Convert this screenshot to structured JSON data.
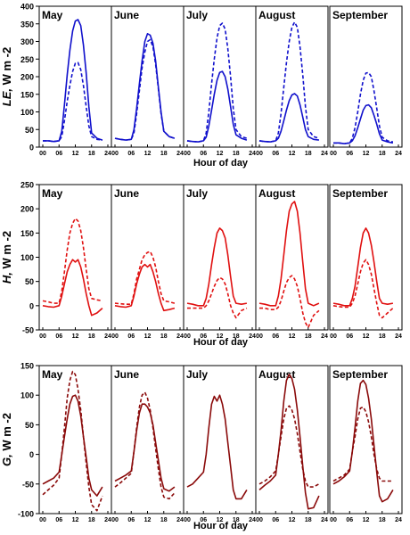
{
  "figure": {
    "months": [
      "May",
      "June",
      "July",
      "August",
      "September"
    ],
    "xlabel": "Hour of day",
    "xticks": [
      "00",
      "06",
      "12",
      "18",
      "24"
    ]
  },
  "chart_data": [
    {
      "type": "line",
      "ylabel": "LE, W m -2",
      "ylim": [
        0,
        400
      ],
      "yticks": [
        0,
        50,
        100,
        150,
        200,
        250,
        300,
        350,
        400
      ],
      "color": "#1010cc",
      "x": [
        0,
        2,
        4,
        6,
        7,
        8,
        9,
        10,
        11,
        12,
        13,
        14,
        15,
        16,
        17,
        18,
        20,
        22
      ],
      "panels": [
        {
          "month": "May",
          "solid": [
            18,
            18,
            16,
            18,
            45,
            120,
            205,
            275,
            330,
            358,
            362,
            345,
            290,
            210,
            115,
            40,
            25,
            20
          ],
          "dashed": [
            18,
            18,
            16,
            18,
            30,
            75,
            130,
            175,
            215,
            238,
            240,
            220,
            175,
            115,
            60,
            30,
            22,
            20
          ]
        },
        {
          "month": "June",
          "solid": [
            25,
            22,
            20,
            22,
            50,
            110,
            180,
            245,
            300,
            322,
            318,
            295,
            245,
            170,
            100,
            45,
            30,
            25
          ],
          "dashed": [
            25,
            22,
            20,
            22,
            40,
            95,
            160,
            225,
            270,
            300,
            305,
            285,
            235,
            165,
            95,
            45,
            30,
            25
          ]
        },
        {
          "month": "July",
          "solid": [
            18,
            16,
            15,
            18,
            28,
            60,
            105,
            150,
            190,
            212,
            215,
            200,
            165,
            115,
            65,
            35,
            25,
            20
          ],
          "dashed": [
            18,
            16,
            15,
            18,
            40,
            100,
            180,
            250,
            310,
            345,
            352,
            335,
            280,
            200,
            110,
            50,
            30,
            25
          ]
        },
        {
          "month": "August",
          "solid": [
            18,
            16,
            15,
            18,
            25,
            45,
            75,
            105,
            132,
            148,
            152,
            145,
            120,
            85,
            50,
            30,
            22,
            20
          ],
          "dashed": [
            18,
            16,
            15,
            18,
            40,
            95,
            170,
            240,
            300,
            340,
            355,
            340,
            285,
            205,
            115,
            50,
            30,
            25
          ]
        },
        {
          "month": "September",
          "solid": [
            12,
            12,
            10,
            12,
            18,
            32,
            55,
            80,
            105,
            118,
            120,
            112,
            90,
            65,
            38,
            20,
            15,
            12
          ],
          "dashed": [
            12,
            12,
            10,
            12,
            25,
            55,
            100,
            150,
            190,
            210,
            212,
            200,
            160,
            110,
            60,
            28,
            18,
            15
          ]
        }
      ]
    },
    {
      "type": "line",
      "ylabel": "H, W m -2",
      "ylim": [
        -50,
        250
      ],
      "yticks": [
        -50,
        0,
        50,
        100,
        150,
        200,
        250
      ],
      "color": "#e01010",
      "x": [
        0,
        2,
        4,
        6,
        7,
        8,
        9,
        10,
        11,
        12,
        13,
        14,
        15,
        16,
        17,
        18,
        20,
        22
      ],
      "panels": [
        {
          "month": "May",
          "solid": [
            0,
            -2,
            -3,
            0,
            20,
            45,
            70,
            85,
            95,
            90,
            95,
            80,
            55,
            25,
            0,
            -20,
            -15,
            -5
          ],
          "dashed": [
            10,
            8,
            5,
            5,
            30,
            70,
            115,
            150,
            170,
            180,
            175,
            155,
            120,
            75,
            35,
            15,
            12,
            10
          ]
        },
        {
          "month": "June",
          "solid": [
            0,
            -2,
            -3,
            0,
            20,
            45,
            65,
            80,
            85,
            80,
            85,
            70,
            50,
            25,
            5,
            -10,
            -8,
            -5
          ],
          "dashed": [
            5,
            4,
            3,
            3,
            25,
            55,
            75,
            95,
            105,
            110,
            112,
            100,
            80,
            50,
            25,
            10,
            8,
            5
          ]
        },
        {
          "month": "July",
          "solid": [
            5,
            3,
            0,
            0,
            15,
            45,
            85,
            120,
            150,
            160,
            155,
            140,
            105,
            60,
            20,
            5,
            3,
            5
          ],
          "dashed": [
            -5,
            -5,
            -5,
            -5,
            0,
            10,
            25,
            40,
            52,
            58,
            55,
            45,
            25,
            0,
            -15,
            -25,
            -10,
            -5
          ]
        },
        {
          "month": "August",
          "solid": [
            5,
            3,
            0,
            0,
            20,
            55,
            105,
            155,
            195,
            210,
            215,
            195,
            150,
            90,
            35,
            5,
            0,
            5
          ],
          "dashed": [
            -5,
            -5,
            -8,
            -8,
            -3,
            10,
            30,
            48,
            58,
            62,
            55,
            40,
            15,
            -15,
            -35,
            -45,
            -20,
            -10
          ]
        },
        {
          "month": "September",
          "solid": [
            5,
            3,
            0,
            0,
            15,
            40,
            80,
            120,
            150,
            160,
            150,
            125,
            90,
            50,
            15,
            5,
            3,
            5
          ],
          "dashed": [
            0,
            -2,
            -3,
            -3,
            5,
            20,
            45,
            70,
            88,
            95,
            85,
            65,
            35,
            5,
            -20,
            -25,
            -15,
            -5
          ]
        }
      ]
    },
    {
      "type": "line",
      "ylabel": "G, W m -2",
      "ylim": [
        -100,
        150
      ],
      "yticks": [
        -100,
        -50,
        0,
        50,
        100,
        150
      ],
      "color": "#8a0a0a",
      "x": [
        0,
        2,
        4,
        6,
        7,
        8,
        9,
        10,
        11,
        12,
        13,
        14,
        15,
        16,
        17,
        18,
        20,
        22
      ],
      "panels": [
        {
          "month": "May",
          "solid": [
            -50,
            -45,
            -40,
            -30,
            0,
            30,
            60,
            85,
            98,
            100,
            90,
            65,
            30,
            -5,
            -40,
            -60,
            -70,
            -55
          ],
          "dashed": [
            -68,
            -60,
            -52,
            -40,
            0,
            45,
            95,
            125,
            140,
            135,
            110,
            75,
            30,
            -15,
            -55,
            -85,
            -95,
            -70
          ]
        },
        {
          "month": "June",
          "solid": [
            -45,
            -40,
            -35,
            -28,
            5,
            40,
            70,
            85,
            85,
            80,
            70,
            50,
            20,
            -10,
            -40,
            -58,
            -62,
            -55
          ],
          "dashed": [
            -55,
            -48,
            -40,
            -32,
            5,
            45,
            80,
            100,
            105,
            95,
            75,
            45,
            10,
            -25,
            -55,
            -72,
            -75,
            -65
          ]
        },
        {
          "month": "July",
          "solid": [
            -55,
            -50,
            -40,
            -30,
            0,
            45,
            85,
            98,
            90,
            100,
            85,
            60,
            20,
            -20,
            -60,
            -75,
            -75,
            -60
          ]
        },
        {
          "month": "August",
          "solid": [
            -60,
            -52,
            -45,
            -35,
            0,
            40,
            90,
            125,
            135,
            128,
            110,
            75,
            30,
            -20,
            -65,
            -92,
            -90,
            -70
          ],
          "dashed": [
            -50,
            -45,
            -38,
            -28,
            0,
            30,
            60,
            78,
            82,
            75,
            60,
            35,
            5,
            -25,
            -45,
            -55,
            -55,
            -50
          ]
        },
        {
          "month": "September",
          "solid": [
            -50,
            -45,
            -38,
            -28,
            5,
            45,
            90,
            120,
            125,
            118,
            95,
            60,
            15,
            -30,
            -70,
            -80,
            -75,
            -60
          ],
          "dashed": [
            -45,
            -40,
            -35,
            -25,
            5,
            30,
            60,
            78,
            80,
            72,
            55,
            30,
            0,
            -25,
            -40,
            -45,
            -45,
            -45
          ]
        }
      ]
    }
  ]
}
